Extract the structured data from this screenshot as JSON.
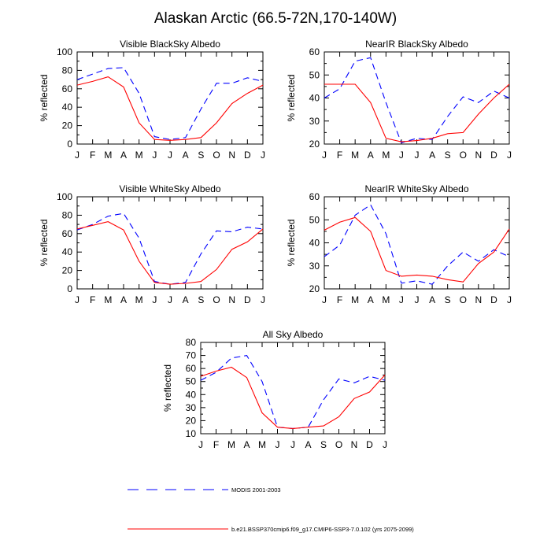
{
  "figure": {
    "title": "Alaskan Arctic (66.5-72N,170-140W)"
  },
  "legend": [
    {
      "name": "MODIS 2001-2003",
      "color": "#0000ff",
      "dash": true
    },
    {
      "name": "b.e21.BSSP370cmip6.f09_g17.CMIP6-SSP3-7.0.102 (yrs 2075-2099)",
      "color": "#ff0000",
      "dash": false
    }
  ],
  "chart_data": [
    {
      "type": "line",
      "title": "Visible BlackSky Albedo",
      "ylabel": "% reflected",
      "xlabel": "",
      "categories": [
        "J",
        "F",
        "M",
        "A",
        "M",
        "J",
        "J",
        "A",
        "S",
        "O",
        "N",
        "D",
        "J"
      ],
      "ylim": [
        0,
        100
      ],
      "yticks": [
        0,
        20,
        40,
        60,
        80,
        100
      ],
      "series": [
        {
          "name": "MODIS 2001-2003",
          "values": [
            70,
            76,
            82,
            83,
            55,
            8,
            5,
            7,
            38,
            66,
            66,
            72,
            68
          ]
        },
        {
          "name": "b.e21.BSSP370cmip6.f09_g17.CMIP6-SSP3-7.0.102 (yrs 2075-2099)",
          "values": [
            64,
            68,
            73,
            62,
            23,
            5,
            4,
            5,
            7,
            23,
            44,
            55,
            64
          ]
        }
      ]
    },
    {
      "type": "line",
      "title": "NearIR BlackSky Albedo",
      "ylabel": "% reflected",
      "xlabel": "",
      "categories": [
        "J",
        "F",
        "M",
        "A",
        "M",
        "J",
        "J",
        "A",
        "S",
        "O",
        "N",
        "D",
        "J"
      ],
      "ylim": [
        20,
        60
      ],
      "yticks": [
        20,
        30,
        40,
        50,
        60
      ],
      "series": [
        {
          "name": "MODIS 2001-2003",
          "values": [
            40,
            44,
            56,
            57.5,
            38,
            20.5,
            22.5,
            22,
            32,
            40.5,
            38,
            43,
            40
          ]
        },
        {
          "name": "b.e21.BSSP370cmip6.f09_g17.CMIP6-SSP3-7.0.102 (yrs 2075-2099)",
          "values": [
            46,
            46,
            46,
            38,
            22.5,
            21,
            21.5,
            22.5,
            24.5,
            25,
            33,
            40,
            46
          ]
        }
      ]
    },
    {
      "type": "line",
      "title": "Visible WhiteSky Albedo",
      "ylabel": "% reflected",
      "xlabel": "",
      "categories": [
        "J",
        "F",
        "M",
        "A",
        "M",
        "J",
        "J",
        "A",
        "S",
        "O",
        "N",
        "D",
        "J"
      ],
      "ylim": [
        0,
        100
      ],
      "yticks": [
        0,
        20,
        40,
        60,
        80,
        100
      ],
      "series": [
        {
          "name": "MODIS 2001-2003",
          "values": [
            64,
            70,
            79,
            82,
            55,
            8,
            5,
            7,
            38,
            63,
            62,
            67,
            65
          ]
        },
        {
          "name": "b.e21.BSSP370cmip6.f09_g17.CMIP6-SSP3-7.0.102 (yrs 2075-2099)",
          "values": [
            65,
            69,
            73,
            64,
            30,
            7,
            5,
            6,
            8,
            21,
            43,
            51,
            65
          ]
        }
      ]
    },
    {
      "type": "line",
      "title": "NearIR WhiteSky Albedo",
      "ylabel": "% reflected",
      "xlabel": "",
      "categories": [
        "J",
        "F",
        "M",
        "A",
        "M",
        "J",
        "J",
        "A",
        "S",
        "O",
        "N",
        "D",
        "J"
      ],
      "ylim": [
        20,
        60
      ],
      "yticks": [
        20,
        30,
        40,
        50,
        60
      ],
      "series": [
        {
          "name": "MODIS 2001-2003",
          "values": [
            34,
            39,
            52,
            56.5,
            44,
            22.5,
            23.5,
            22,
            30,
            36,
            32,
            37,
            34
          ]
        },
        {
          "name": "b.e21.BSSP370cmip6.f09_g17.CMIP6-SSP3-7.0.102 (yrs 2075-2099)",
          "values": [
            45.5,
            49,
            51,
            45,
            28,
            25.5,
            26,
            25.5,
            24,
            23,
            31,
            36,
            46
          ]
        }
      ]
    },
    {
      "type": "line",
      "title": "All Sky Albedo",
      "ylabel": "% reflected",
      "xlabel": "",
      "categories": [
        "J",
        "F",
        "M",
        "A",
        "M",
        "J",
        "J",
        "A",
        "S",
        "O",
        "N",
        "D",
        "J"
      ],
      "ylim": [
        10,
        80
      ],
      "yticks": [
        10,
        20,
        30,
        40,
        50,
        60,
        70,
        80
      ],
      "series": [
        {
          "name": "MODIS 2001-2003",
          "values": [
            51,
            57,
            68,
            70,
            50,
            15,
            14,
            15,
            36,
            52,
            49,
            54,
            51
          ]
        },
        {
          "name": "b.e21.BSSP370cmip6.f09_g17.CMIP6-SSP3-7.0.102 (yrs 2075-2099)",
          "values": [
            54,
            58,
            61,
            53,
            26,
            15,
            14,
            15,
            16,
            23,
            37,
            42,
            55
          ]
        }
      ]
    }
  ]
}
